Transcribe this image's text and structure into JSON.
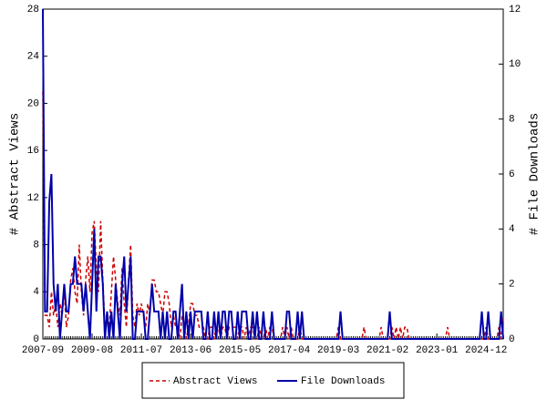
{
  "chart_data": {
    "type": "line",
    "ylabel": "# Abstract Views",
    "y2label": "# File Downloads",
    "x": [
      "2007-09",
      "2007-10",
      "2007-11",
      "2007-12",
      "2008-01",
      "2008-02",
      "2008-03",
      "2008-04",
      "2008-05",
      "2008-06",
      "2008-07",
      "2008-08",
      "2008-09",
      "2008-10",
      "2008-11",
      "2008-12",
      "2009-01",
      "2009-02",
      "2009-03",
      "2009-04",
      "2009-05",
      "2009-06",
      "2009-07",
      "2009-08",
      "2009-09",
      "2009-10",
      "2009-11",
      "2009-12",
      "2010-01",
      "2010-02",
      "2010-03",
      "2010-04",
      "2010-05",
      "2010-06",
      "2010-07",
      "2010-08",
      "2010-09",
      "2010-10",
      "2010-11",
      "2010-12",
      "2011-01",
      "2011-02",
      "2011-03",
      "2011-04",
      "2011-05",
      "2011-06",
      "2011-07",
      "2011-08",
      "2011-09",
      "2011-10",
      "2011-11",
      "2011-12",
      "2012-01",
      "2012-02",
      "2012-03",
      "2012-04",
      "2012-05",
      "2012-06",
      "2012-07",
      "2012-08",
      "2012-09",
      "2012-10",
      "2012-11",
      "2012-12",
      "2013-01",
      "2013-02",
      "2013-03",
      "2013-04",
      "2013-05",
      "2013-06",
      "2013-07",
      "2013-08",
      "2013-09",
      "2013-10",
      "2013-11",
      "2013-12",
      "2014-01",
      "2014-02",
      "2014-03",
      "2014-04",
      "2014-05",
      "2014-06",
      "2014-07",
      "2014-08",
      "2014-09",
      "2014-10",
      "2014-11",
      "2014-12",
      "2015-01",
      "2015-02",
      "2015-03",
      "2015-04",
      "2015-05",
      "2015-06",
      "2015-07",
      "2015-08",
      "2015-09",
      "2015-10",
      "2015-11",
      "2015-12",
      "2016-01",
      "2016-02",
      "2016-03",
      "2016-04",
      "2016-05",
      "2016-06",
      "2016-07",
      "2016-08",
      "2016-09",
      "2016-10",
      "2016-11",
      "2016-12",
      "2017-01",
      "2017-02",
      "2017-03",
      "2017-04",
      "2017-05",
      "2017-06",
      "2017-07",
      "2017-08",
      "2017-09",
      "2017-10",
      "2017-11",
      "2017-12",
      "2018-01",
      "2018-02",
      "2018-03",
      "2018-04",
      "2018-05",
      "2018-06",
      "2018-07",
      "2018-08",
      "2018-09",
      "2018-10",
      "2018-11",
      "2018-12",
      "2019-01",
      "2019-02",
      "2019-03",
      "2019-04",
      "2019-05",
      "2019-06",
      "2019-07",
      "2019-08",
      "2019-09",
      "2019-10",
      "2019-11",
      "2019-12",
      "2020-01",
      "2020-02",
      "2020-03",
      "2020-04",
      "2020-05",
      "2020-06",
      "2020-07",
      "2020-08",
      "2020-09",
      "2020-10",
      "2020-11",
      "2020-12",
      "2021-01",
      "2021-02",
      "2021-03",
      "2021-04",
      "2021-05",
      "2021-06",
      "2021-07",
      "2021-08",
      "2021-09",
      "2021-10",
      "2021-11",
      "2021-12",
      "2022-01",
      "2022-02",
      "2022-03",
      "2022-04",
      "2022-05",
      "2022-06",
      "2022-07",
      "2022-08",
      "2022-09",
      "2022-10",
      "2022-11",
      "2022-12",
      "2023-01",
      "2023-02",
      "2023-03",
      "2023-04",
      "2023-05",
      "2023-06",
      "2023-07",
      "2023-08",
      "2023-09",
      "2023-10",
      "2023-11",
      "2023-12",
      "2024-01",
      "2024-02",
      "2024-03",
      "2024-04",
      "2024-05",
      "2024-06",
      "2024-07",
      "2024-08",
      "2024-09",
      "2024-10",
      "2024-11",
      "2024-12",
      "2025-01",
      "2025-02",
      "2025-03",
      "2025-04",
      "2025-05",
      "2025-06",
      "2025-07",
      "2025-08"
    ],
    "xticks": [
      "2007-09",
      "2009-08",
      "2011-07",
      "2013-06",
      "2015-05",
      "2017-04",
      "2019-03",
      "2021-02",
      "2023-01",
      "2024-12"
    ],
    "ylim": [
      0,
      28
    ],
    "yticks": [
      0,
      4,
      8,
      12,
      16,
      20,
      24,
      28
    ],
    "y2lim": [
      0,
      12
    ],
    "y2ticks": [
      0,
      2,
      4,
      6,
      8,
      10,
      12
    ],
    "series": [
      {
        "name": "Abstract Views",
        "color": "#cc0000",
        "dash": true,
        "values": [
          21,
          2,
          2,
          1,
          4,
          2,
          3,
          1,
          3,
          2,
          4,
          1,
          2,
          5,
          6,
          4,
          3,
          8,
          4,
          2,
          5,
          7,
          4,
          9,
          10,
          6,
          4,
          10,
          5,
          1,
          2,
          1,
          4,
          7,
          5,
          3,
          2,
          6,
          3,
          1,
          5,
          8,
          2,
          1,
          3,
          2,
          3,
          2,
          1,
          3,
          2,
          5,
          5,
          4,
          4,
          3,
          2,
          4,
          4,
          3,
          1,
          2,
          1,
          1,
          0,
          2,
          1,
          0,
          1,
          3,
          3,
          2,
          2,
          1,
          1,
          1,
          0,
          0,
          1,
          1,
          0,
          1,
          1,
          0,
          1,
          1,
          0,
          1,
          1,
          1,
          1,
          0,
          1,
          1,
          0,
          1,
          0,
          1,
          1,
          0,
          0,
          1,
          0,
          0,
          1,
          0,
          1,
          1,
          0,
          0,
          0,
          0,
          1,
          0,
          1,
          0,
          1,
          0,
          0,
          0,
          1,
          0,
          0,
          0,
          0,
          0,
          0,
          0,
          0,
          0,
          0,
          0,
          0,
          0,
          0,
          0,
          0,
          0,
          1,
          0,
          0,
          0,
          0,
          0,
          0,
          0,
          0,
          0,
          0,
          0,
          1,
          0,
          0,
          0,
          0,
          0,
          0,
          0,
          1,
          0,
          0,
          0,
          0,
          1,
          0,
          1,
          0,
          1,
          0,
          1,
          1,
          0,
          0,
          0,
          0,
          0,
          0,
          0,
          0,
          0,
          0,
          0,
          0,
          0,
          0,
          0,
          0,
          0,
          0,
          1,
          0,
          0,
          0,
          0,
          0,
          0,
          0,
          0,
          0,
          0,
          0,
          0,
          0,
          0,
          0,
          0,
          0,
          1,
          0,
          0,
          0,
          0,
          0,
          1,
          0,
          2
        ]
      },
      {
        "name": "File Downloads",
        "color": "#0000aa",
        "axis": "y2",
        "values": [
          12,
          1,
          1,
          5,
          6,
          2,
          1,
          2,
          0,
          1,
          2,
          1,
          1,
          2,
          2,
          3,
          2,
          2,
          2,
          1,
          2,
          1,
          0,
          2,
          4,
          1,
          3,
          3,
          2,
          0,
          1,
          0,
          1,
          0,
          2,
          1,
          0,
          2,
          3,
          1,
          2,
          3,
          0,
          0,
          1,
          1,
          1,
          1,
          0,
          0,
          1,
          2,
          1,
          1,
          1,
          0,
          1,
          0,
          1,
          0,
          0,
          1,
          1,
          0,
          1,
          2,
          0,
          1,
          0,
          1,
          0,
          1,
          1,
          1,
          1,
          0,
          0,
          1,
          0,
          0,
          1,
          0,
          1,
          0,
          1,
          1,
          0,
          1,
          1,
          0,
          0,
          1,
          0,
          1,
          1,
          1,
          0,
          0,
          1,
          0,
          1,
          0,
          0,
          1,
          0,
          0,
          0,
          1,
          0,
          0,
          0,
          0,
          0,
          0,
          1,
          1,
          0,
          0,
          0,
          1,
          0,
          1,
          0,
          0,
          0,
          0,
          0,
          0,
          0,
          0,
          0,
          0,
          0,
          0,
          0,
          0,
          0,
          0,
          0,
          1,
          0,
          0,
          0,
          0,
          0,
          0,
          0,
          0,
          0,
          0,
          0,
          0,
          0,
          0,
          0,
          0,
          0,
          0,
          0,
          0,
          0,
          0,
          1,
          0,
          0,
          0,
          0,
          0,
          0,
          0,
          0,
          0,
          0,
          0,
          0,
          0,
          0,
          0,
          0,
          0,
          0,
          0,
          0,
          0,
          0,
          0,
          0,
          0,
          0,
          0,
          0,
          0,
          0,
          0,
          0,
          0,
          0,
          0,
          0,
          0,
          0,
          0,
          0,
          0,
          0,
          1,
          0,
          0,
          1,
          0,
          0,
          0,
          0,
          0,
          1,
          0
        ]
      }
    ]
  }
}
